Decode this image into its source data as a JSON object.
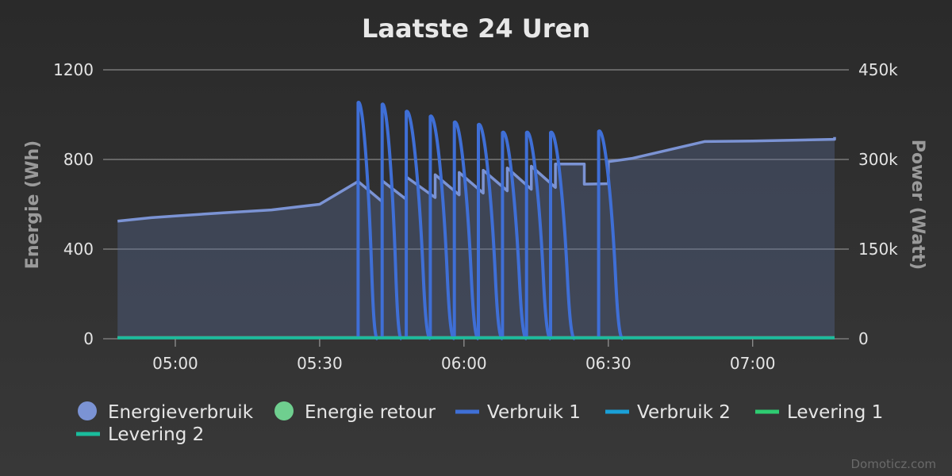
{
  "chart_data": {
    "type": "line",
    "title": "Laatste 24 Uren",
    "credit": "Domoticz.com",
    "x_axis": {
      "min": "04:45",
      "max": "07:20",
      "tick_labels": [
        "05:00",
        "05:30",
        "06:00",
        "06:30",
        "07:00"
      ]
    },
    "y_axis_left": {
      "label": "Energie (Wh)",
      "range": [
        0,
        1200
      ],
      "tick_labels": [
        "0",
        "400",
        "800",
        "1200"
      ]
    },
    "y_axis_right": {
      "label": "Power (Watt)",
      "range": [
        0,
        450000
      ],
      "tick_labels": [
        "0",
        "150k",
        "300k",
        "450k"
      ]
    },
    "grid": true,
    "legend_position": "bottom",
    "colors": {
      "energieverbruik": "#7b93d4",
      "energie_retour": "#6fcf8f",
      "verbruik1": "#3f6fd6",
      "verbruik2": "#1aa0d8",
      "levering1": "#2ecc71",
      "levering2": "#1abc9c"
    },
    "series": [
      {
        "name": "Energieverbruik",
        "axis": "left",
        "style": "area",
        "points": [
          [
            "04:48",
            525
          ],
          [
            "04:55",
            540
          ],
          [
            "05:00",
            548
          ],
          [
            "05:10",
            562
          ],
          [
            "05:20",
            575
          ],
          [
            "05:30",
            600
          ],
          [
            "05:38",
            702
          ],
          [
            "05:43",
            612
          ],
          [
            "05:43",
            705
          ],
          [
            "05:48",
            622
          ],
          [
            "05:48",
            722
          ],
          [
            "05:54",
            630
          ],
          [
            "05:54",
            732
          ],
          [
            "05:59",
            642
          ],
          [
            "05:59",
            742
          ],
          [
            "06:04",
            650
          ],
          [
            "06:04",
            752
          ],
          [
            "06:09",
            660
          ],
          [
            "06:09",
            762
          ],
          [
            "06:14",
            667
          ],
          [
            "06:14",
            770
          ],
          [
            "06:19",
            675
          ],
          [
            "06:19",
            780
          ],
          [
            "06:25",
            780
          ],
          [
            "06:25",
            690
          ],
          [
            "06:30",
            692
          ],
          [
            "06:30",
            790
          ],
          [
            "06:35",
            805
          ],
          [
            "06:50",
            880
          ],
          [
            "07:00",
            882
          ],
          [
            "07:20",
            890
          ],
          [
            "07:45",
            900
          ]
        ]
      },
      {
        "name": "Energie retour",
        "axis": "left",
        "style": "area",
        "points": [
          [
            "04:48",
            8
          ],
          [
            "07:45",
            8
          ]
        ]
      },
      {
        "name": "Verbruik 1",
        "axis": "right",
        "style": "line",
        "spikes": [
          {
            "start": "05:38",
            "peak": 395000,
            "end": "05:42"
          },
          {
            "start": "05:43",
            "peak": 392000,
            "end": "05:47"
          },
          {
            "start": "05:48",
            "peak": 380000,
            "end": "05:53"
          },
          {
            "start": "05:53",
            "peak": 372000,
            "end": "05:58"
          },
          {
            "start": "05:58",
            "peak": 362000,
            "end": "06:03"
          },
          {
            "start": "06:03",
            "peak": 358000,
            "end": "06:08"
          },
          {
            "start": "06:08",
            "peak": 345000,
            "end": "06:13"
          },
          {
            "start": "06:13",
            "peak": 345000,
            "end": "06:18"
          },
          {
            "start": "06:18",
            "peak": 345000,
            "end": "06:23"
          },
          {
            "start": "06:28",
            "peak": 347000,
            "end": "06:33"
          }
        ]
      },
      {
        "name": "Verbruik 2",
        "axis": "right",
        "style": "line",
        "points": [
          [
            "04:48",
            2000
          ],
          [
            "07:45",
            2000
          ]
        ]
      },
      {
        "name": "Levering 1",
        "axis": "right",
        "style": "line",
        "points": [
          [
            "04:48",
            1500
          ],
          [
            "07:45",
            1500
          ]
        ]
      },
      {
        "name": "Levering 2",
        "axis": "right",
        "style": "line",
        "points": [
          [
            "04:48",
            1000
          ],
          [
            "07:45",
            1000
          ]
        ]
      }
    ],
    "legend": [
      {
        "label": "Energieverbruik",
        "marker": "circle",
        "color": "#7b93d4"
      },
      {
        "label": "Energie retour",
        "marker": "circle",
        "color": "#6fcf8f"
      },
      {
        "label": "Verbruik 1",
        "marker": "line",
        "color": "#3f6fd6"
      },
      {
        "label": "Verbruik 2",
        "marker": "line",
        "color": "#1aa0d8"
      },
      {
        "label": "Levering 1",
        "marker": "line",
        "color": "#2ecc71"
      },
      {
        "label": "Levering 2",
        "marker": "line",
        "color": "#1abc9c"
      }
    ]
  }
}
